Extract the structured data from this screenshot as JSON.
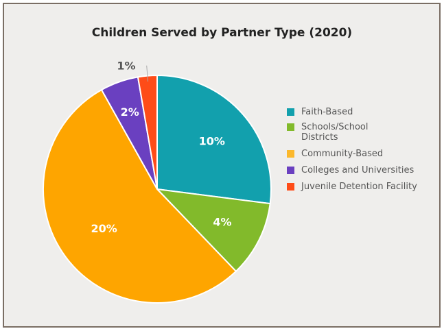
{
  "chart_data": {
    "type": "pie",
    "title": "Children Served by Partner Type (2020)",
    "slices": [
      {
        "name": "Faith-Based",
        "value": 10,
        "label": "10%",
        "color": "#12a0ad"
      },
      {
        "name": "Schools/School Districts",
        "value": 4,
        "label": "4%",
        "color": "#82ba2b"
      },
      {
        "name": "Community-Based",
        "value": 20,
        "label": "20%",
        "color": "#fea500"
      },
      {
        "name": "Colleges and Universities",
        "value": 2,
        "label": "2%",
        "color": "#6a40c0"
      },
      {
        "name": "Juvenile Detention Facility",
        "value": 1,
        "label": "1%",
        "color": "#fe4c18"
      }
    ],
    "legend": {
      "position": "right",
      "items": [
        {
          "lines": [
            "Faith-Based"
          ],
          "color": "#12a0ad"
        },
        {
          "lines": [
            "Schools/School",
            "Districts"
          ],
          "color": "#82ba2b"
        },
        {
          "lines": [
            "Community-Based"
          ],
          "color": "#fbb82c"
        },
        {
          "lines": [
            "Colleges and Universities"
          ],
          "color": "#6a40c0"
        },
        {
          "lines": [
            "Juvenile Detention Facility"
          ],
          "color": "#fe4c18"
        }
      ]
    }
  }
}
